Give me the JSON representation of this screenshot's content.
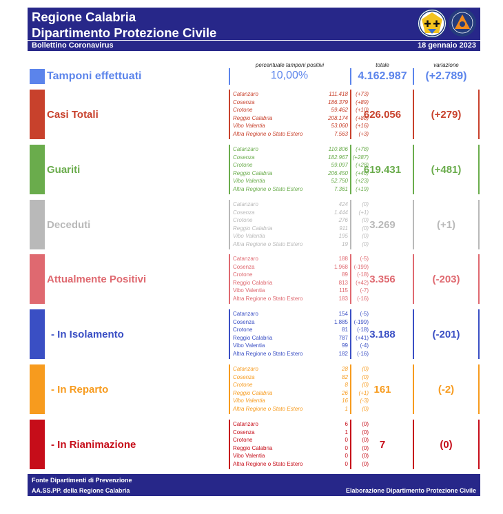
{
  "header": {
    "title_line1": "Regione Calabria",
    "title_line2": "Dipartimento Protezione Civile",
    "subtitle": "Bollettino Coronavirus",
    "date": "18 gennaio 2023"
  },
  "captions": {
    "percent": "percentuale tamponi positivi",
    "total": "totale",
    "variation": "variazione"
  },
  "tamponi": {
    "label": "Tamponi effettuati",
    "percent": "10,00%",
    "total": "4.162.987",
    "variation": "(+2.789)",
    "color": "#5b84eb"
  },
  "rows": [
    {
      "label": "Casi Totali",
      "color": "#c8412c",
      "total": "626.056",
      "variation": "(+279)",
      "provinces": [
        {
          "name": "Catanzaro",
          "value": "111.418",
          "delta": "(+73)"
        },
        {
          "name": "Cosenza",
          "value": "186.379",
          "delta": "(+89)"
        },
        {
          "name": "Crotone",
          "value": "59.462",
          "delta": "(+10)"
        },
        {
          "name": "Reggio Calabria",
          "value": "208.174",
          "delta": "(+88)"
        },
        {
          "name": "Vibo Valentia",
          "value": "53.060",
          "delta": "(+16)"
        },
        {
          "name": "Altra Regione o Stato Estero",
          "value": "7.563",
          "delta": "(+3)"
        }
      ]
    },
    {
      "label": "Guariti",
      "color": "#6aac4c",
      "total": "619.431",
      "variation": "(+481)",
      "provinces": [
        {
          "name": "Catanzaro",
          "value": "110.806",
          "delta": "(+78)"
        },
        {
          "name": "Cosenza",
          "value": "182.967",
          "delta": "(+287)"
        },
        {
          "name": "Crotone",
          "value": "59.097",
          "delta": "(+28)"
        },
        {
          "name": "Reggio Calabria",
          "value": "206.450",
          "delta": "(+46)"
        },
        {
          "name": "Vibo Valentia",
          "value": "52.750",
          "delta": "(+23)"
        },
        {
          "name": "Altra Regione o Stato Estero",
          "value": "7.361",
          "delta": "(+19)"
        }
      ]
    },
    {
      "label": "Deceduti",
      "color": "#b9b9b9",
      "total": "3.269",
      "variation": "(+1)",
      "provinces": [
        {
          "name": "Catanzaro",
          "value": "424",
          "delta": "(0)"
        },
        {
          "name": "Cosenza",
          "value": "1.444",
          "delta": "(+1)"
        },
        {
          "name": "Crotone",
          "value": "276",
          "delta": "(0)"
        },
        {
          "name": "Reggio Calabria",
          "value": "911",
          "delta": "(0)"
        },
        {
          "name": "Vibo Valentia",
          "value": "195",
          "delta": "(0)"
        },
        {
          "name": "Altra Regione o Stato Estero",
          "value": "19",
          "delta": "(0)"
        }
      ]
    },
    {
      "label": "Attualmente Positivi",
      "color": "#df6970",
      "total": "3.356",
      "variation": "(-203)",
      "provinces": [
        {
          "name": "Catanzaro",
          "value": "188",
          "delta": "(-5)"
        },
        {
          "name": "Cosenza",
          "value": "1.968",
          "delta": "(-199)"
        },
        {
          "name": "Crotone",
          "value": "89",
          "delta": "(-18)"
        },
        {
          "name": "Reggio Calabria",
          "value": "813",
          "delta": "(+42)"
        },
        {
          "name": "Vibo Valentia",
          "value": "115",
          "delta": "(-7)"
        },
        {
          "name": "Altra Regione o Stato Estero",
          "value": "183",
          "delta": "(-16)"
        }
      ]
    },
    {
      "label": "- In Isolamento",
      "color": "#3a4fc4",
      "total": "3.188",
      "variation": "(-201)",
      "provinces": [
        {
          "name": "Catanzaro",
          "value": "154",
          "delta": "(-5)"
        },
        {
          "name": "Cosenza",
          "value": "1.885",
          "delta": "(-199)"
        },
        {
          "name": "Crotone",
          "value": "81",
          "delta": "(-18)"
        },
        {
          "name": "Reggio Calabria",
          "value": "787",
          "delta": "(+41)"
        },
        {
          "name": "Vibo Valentia",
          "value": "99",
          "delta": "(-4)"
        },
        {
          "name": "Altra Regione o Stato Estero",
          "value": "182",
          "delta": "(-16)"
        }
      ]
    },
    {
      "label": "- In Reparto",
      "color": "#f79b1e",
      "total": "161",
      "variation": "(-2)",
      "provinces": [
        {
          "name": "Catanzaro",
          "value": "28",
          "delta": "(0)"
        },
        {
          "name": "Cosenza",
          "value": "82",
          "delta": "(0)"
        },
        {
          "name": "Crotone",
          "value": "8",
          "delta": "(0)"
        },
        {
          "name": "Reggio Calabria",
          "value": "26",
          "delta": "(+1)"
        },
        {
          "name": "Vibo Valentia",
          "value": "16",
          "delta": "(-3)"
        },
        {
          "name": "Altra Regione o Stato Estero",
          "value": "1",
          "delta": "(0)"
        }
      ]
    },
    {
      "label": "- In Rianimazione",
      "color": "#c60d19",
      "total": "7",
      "variation": "(0)",
      "provinces": [
        {
          "name": "Catanzaro",
          "value": "6",
          "delta": "(0)"
        },
        {
          "name": "Cosenza",
          "value": "1",
          "delta": "(0)"
        },
        {
          "name": "Crotone",
          "value": "0",
          "delta": "(0)"
        },
        {
          "name": "Reggio Calabria",
          "value": "0",
          "delta": "(0)"
        },
        {
          "name": "Vibo Valentia",
          "value": "0",
          "delta": "(0)"
        },
        {
          "name": "Altra Regione o Stato Estero",
          "value": "0",
          "delta": "(0)"
        }
      ]
    }
  ],
  "footer": {
    "line1": "Fonte Dipartimenti di Prevenzione",
    "line2": "AA.SS.PP.  della Regione Calabria",
    "right": "Elaborazione Dipartimento Protezione Civile"
  }
}
